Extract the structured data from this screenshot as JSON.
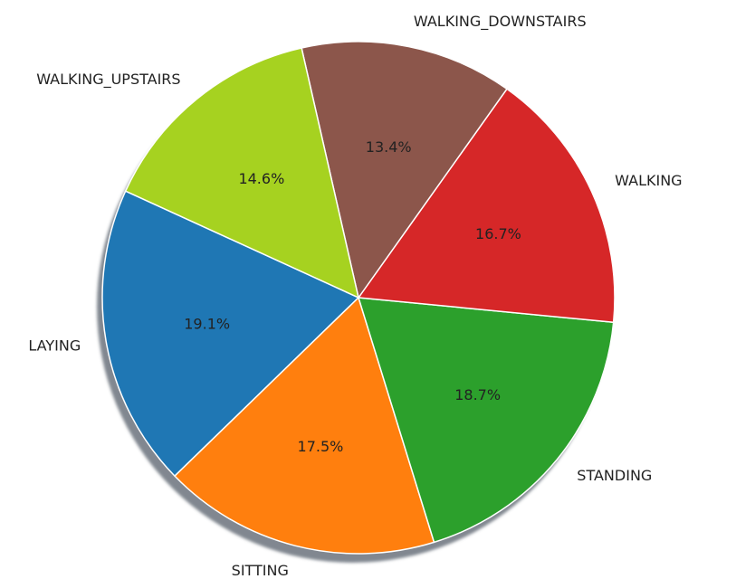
{
  "chart_data": {
    "type": "pie",
    "title": "",
    "shadow": true,
    "startangle_deg": 155.4,
    "direction": "counterclockwise",
    "slices": [
      {
        "label": "LAYING",
        "value": 19.1,
        "pct_label": "19.1%",
        "color": "#1f77b4"
      },
      {
        "label": "SITTING",
        "value": 17.5,
        "pct_label": "17.5%",
        "color": "#ff7f0e"
      },
      {
        "label": "STANDING",
        "value": 18.7,
        "pct_label": "18.7%",
        "color": "#2ca02c"
      },
      {
        "label": "WALKING",
        "value": 16.7,
        "pct_label": "16.7%",
        "color": "#d62728"
      },
      {
        "label": "WALKING_DOWNSTAIRS",
        "value": 13.4,
        "pct_label": "13.4%",
        "color": "#8c564b"
      },
      {
        "label": "WALKING_UPSTAIRS",
        "value": 14.6,
        "pct_label": "14.6%",
        "color": "#a6d220"
      }
    ]
  }
}
